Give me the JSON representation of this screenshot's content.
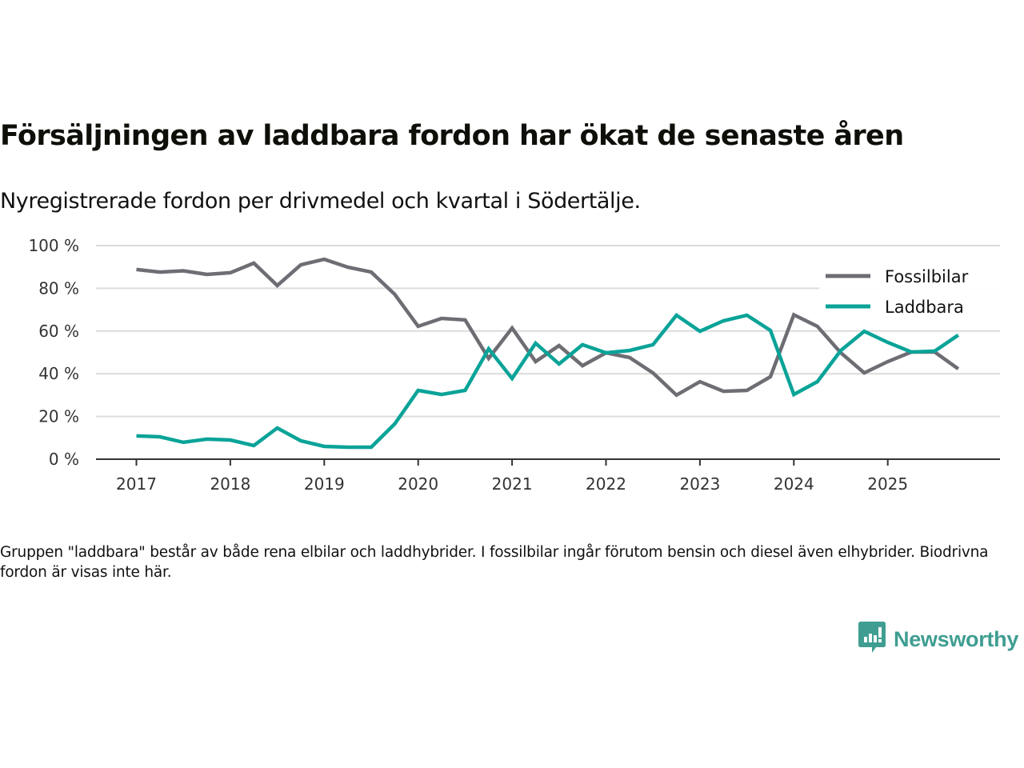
{
  "header": {
    "title": "Försäljningen av laddbara fordon har ökat de senaste åren",
    "subtitle": "Nyregistrerade fordon per drivmedel och kvartal i Södertälje."
  },
  "footnote": "Gruppen \"laddbara\" består av både rena elbilar och laddhybrider. I fossilbilar ingår förutom bensin och diesel även elhybrider. Biodrivna fordon är visas inte här.",
  "logo": {
    "text": "Newsworthy",
    "icon": "newsworthy-chart-bubble-icon",
    "color": "#3f9e91"
  },
  "chart_data": {
    "type": "line",
    "title": "Försäljningen av laddbara fordon har ökat de senaste åren",
    "subtitle": "Nyregistrerade fordon per drivmedel och kvartal i Södertälje.",
    "xlabel": "",
    "ylabel": "",
    "x_unit": "quarter",
    "x": [
      "2017Q1",
      "2017Q2",
      "2017Q3",
      "2017Q4",
      "2018Q1",
      "2018Q2",
      "2018Q3",
      "2018Q4",
      "2019Q1",
      "2019Q2",
      "2019Q3",
      "2019Q4",
      "2020Q1",
      "2020Q2",
      "2020Q3",
      "2020Q4",
      "2021Q1",
      "2021Q2",
      "2021Q3",
      "2021Q4",
      "2022Q1",
      "2022Q2",
      "2022Q3",
      "2022Q4",
      "2023Q1",
      "2023Q2",
      "2023Q3",
      "2023Q4",
      "2024Q1",
      "2024Q2",
      "2024Q3",
      "2024Q4",
      "2025Q1",
      "2025Q2",
      "2025Q3",
      "2025Q4"
    ],
    "x_ticks": [
      "2017",
      "2018",
      "2019",
      "2020",
      "2021",
      "2022",
      "2023",
      "2024",
      "2025"
    ],
    "x_range": [
      2016.6,
      2026.25
    ],
    "y_ticks": [
      "0 %",
      "20 %",
      "40 %",
      "60 %",
      "80 %",
      "100 %"
    ],
    "y_tick_values": [
      0,
      20,
      40,
      60,
      80,
      100
    ],
    "ylim": [
      0,
      100
    ],
    "grid": "horizontal",
    "legend_position": "top-right",
    "series": [
      {
        "name": "Fossilbilar",
        "color": "#6e6d74",
        "values": [
          88.8,
          87.6,
          88.2,
          86.5,
          87.3,
          91.8,
          81.3,
          91.0,
          93.6,
          89.9,
          87.6,
          77.2,
          62.2,
          65.9,
          65.2,
          47.2,
          61.4,
          45.7,
          53.2,
          43.8,
          49.8,
          47.6,
          40.4,
          30.0,
          36.3,
          31.8,
          32.2,
          38.6,
          67.6,
          62.2,
          49.8,
          40.4,
          45.7,
          50.2,
          50.2,
          42.3
        ]
      },
      {
        "name": "Laddbara",
        "color": "#0aa398",
        "values": [
          10.9,
          10.5,
          7.9,
          9.4,
          9.0,
          6.4,
          14.6,
          8.6,
          6.0,
          5.6,
          5.6,
          16.5,
          32.2,
          30.3,
          32.2,
          51.7,
          37.8,
          54.3,
          44.6,
          53.6,
          49.8,
          50.9,
          53.6,
          67.4,
          59.9,
          64.8,
          67.4,
          60.3,
          30.3,
          36.3,
          50.9,
          59.9,
          54.7,
          50.2,
          50.6,
          58.1
        ]
      }
    ]
  }
}
